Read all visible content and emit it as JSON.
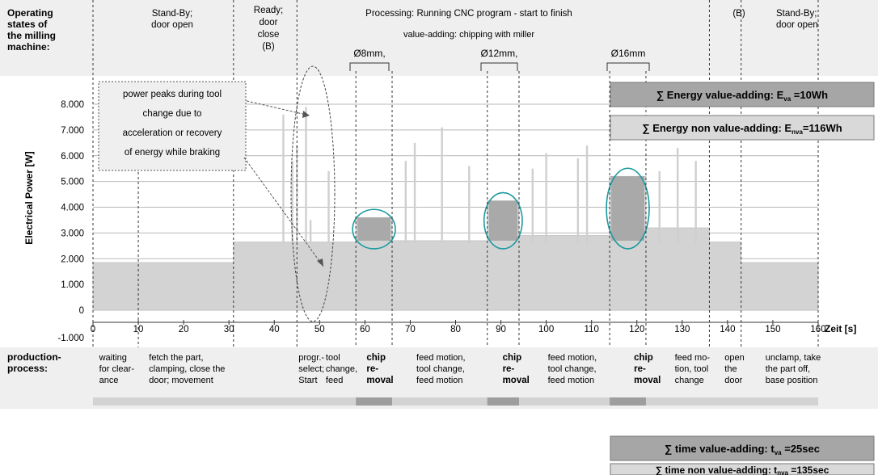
{
  "header": {
    "states_label": [
      "Operating",
      "states of",
      "the milling",
      "machine:"
    ],
    "states": [
      {
        "lines": [
          "Stand-By;",
          "door open"
        ]
      },
      {
        "lines": [
          "Ready;",
          "door",
          "close",
          "(B)"
        ]
      },
      {
        "lines": [
          "Processing: Running CNC program - start to finish"
        ]
      },
      {
        "lines": [
          "(B)"
        ]
      },
      {
        "lines": [
          "Stand-By;",
          "door open"
        ]
      }
    ],
    "value_adding_label": "value-adding: chipping with miller",
    "tool_sizes": [
      "Ø8mm,",
      "Ø12mm,",
      "Ø16mm"
    ]
  },
  "annotation": {
    "lines": [
      "power peaks during tool",
      "change due to",
      "acceleration or recovery",
      "of energy while braking"
    ]
  },
  "energy": {
    "va_prefix": "∑ Energy value-adding: E",
    "va_sub": "va",
    "va_value": " =10Wh",
    "nva_prefix": "∑ Energy non value-adding: E",
    "nva_sub": "nva",
    "nva_value": "=116Wh"
  },
  "time": {
    "va_prefix": "∑ time value-adding: t",
    "va_sub": "va",
    "va_value": " =25sec",
    "nva_prefix": "∑ time non value-adding: t",
    "nva_sub": "nva",
    "nva_value": " =135sec"
  },
  "process": {
    "label": [
      "production-",
      "process:"
    ],
    "steps": [
      {
        "lines": [
          "waiting",
          "for clear-",
          "ance"
        ],
        "bold": false
      },
      {
        "lines": [
          "fetch the part,",
          "clamping, close the",
          "door; movement"
        ],
        "bold": false
      },
      {
        "lines": [
          "progr.-",
          "select;",
          "Start"
        ],
        "bold": false
      },
      {
        "lines": [
          "tool",
          "change,",
          "feed"
        ],
        "bold": false
      },
      {
        "lines": [
          "chip",
          "re-",
          "moval"
        ],
        "bold": true
      },
      {
        "lines": [
          "feed motion,",
          "tool change,",
          "feed motion"
        ],
        "bold": false
      },
      {
        "lines": [
          "chip",
          "re-",
          "moval"
        ],
        "bold": true
      },
      {
        "lines": [
          "feed motion,",
          "tool change,",
          "feed motion"
        ],
        "bold": false
      },
      {
        "lines": [
          "chip",
          "re-",
          "moval"
        ],
        "bold": true
      },
      {
        "lines": [
          "feed mo-",
          "tion, tool",
          "change"
        ],
        "bold": false
      },
      {
        "lines": [
          "open",
          "the",
          "door"
        ],
        "bold": false
      },
      {
        "lines": [
          "unclamp, take",
          "the part off,",
          "base position"
        ],
        "bold": false
      }
    ]
  },
  "chart_data": {
    "type": "area",
    "xlabel": "Zeit [s]",
    "ylabel": "Electrical Power [W]",
    "xlim": [
      0,
      160
    ],
    "ylim": [
      -1000,
      8800
    ],
    "x_ticks": [
      0,
      10,
      20,
      30,
      40,
      50,
      60,
      70,
      80,
      90,
      100,
      110,
      120,
      130,
      140,
      150,
      160
    ],
    "y_ticks": [
      -1000,
      0,
      1000,
      2000,
      3000,
      4000,
      5000,
      6000,
      7000,
      8000
    ],
    "y_tick_labels": [
      "-1.000",
      "0",
      "1.000",
      "2.000",
      "3.000",
      "4.000",
      "5.000",
      "6.000",
      "7.000",
      "8.000"
    ],
    "grid": true,
    "series": [
      {
        "name": "",
        "x": [
          0,
          31,
          31,
          58,
          58,
          66,
          66,
          87,
          87,
          94,
          94,
          114,
          114,
          122,
          122,
          136,
          136,
          143,
          143,
          160
        ],
        "values": [
          1850,
          1850,
          2650,
          2650,
          3600,
          3600,
          2700,
          2700,
          4250,
          4250,
          2900,
          2900,
          5200,
          5200,
          3200,
          3200,
          2650,
          2650,
          1850,
          1850
        ]
      }
    ],
    "chip_removal_segments": [
      [
        58,
        66
      ],
      [
        87,
        94
      ],
      [
        114,
        122
      ]
    ],
    "power_peaks": [
      {
        "x": 42,
        "value": 7600
      },
      {
        "x": 44,
        "value": 5800
      },
      {
        "x": 45,
        "value": 6400
      },
      {
        "x": 47,
        "value": 7900
      },
      {
        "x": 48,
        "value": 3500
      },
      {
        "x": 52,
        "value": 5400
      },
      {
        "x": 69,
        "value": 5800
      },
      {
        "x": 71,
        "value": 6500
      },
      {
        "x": 77,
        "value": 7100
      },
      {
        "x": 83,
        "value": 5600
      },
      {
        "x": 97,
        "value": 5500
      },
      {
        "x": 100,
        "value": 6100
      },
      {
        "x": 107,
        "value": 5900
      },
      {
        "x": 109,
        "value": 6400
      },
      {
        "x": 125,
        "value": 5400
      },
      {
        "x": 129,
        "value": 6300
      },
      {
        "x": 133,
        "value": 5800
      }
    ]
  }
}
